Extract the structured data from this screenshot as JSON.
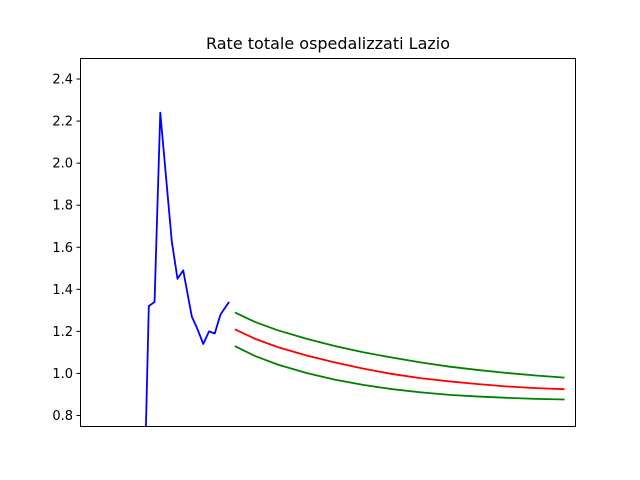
{
  "chart_data": {
    "type": "line",
    "title": "Rate totale ospedalizzati Lazio",
    "xlabel": "",
    "ylabel": "",
    "ylim": [
      0.75,
      2.5
    ],
    "xlim": [
      -14.5,
      72
    ],
    "x_ticks_shown": false,
    "y_ticks": [
      "0.8",
      "1.0",
      "1.2",
      "1.4",
      "1.6",
      "1.8",
      "2.0",
      "2.2",
      "2.4"
    ],
    "grid": false,
    "legend": "none",
    "series": [
      {
        "role": "observed",
        "color": "#0000ff",
        "x": [
          -3,
          -2.5,
          -1.5,
          -0.5,
          1.5,
          2.5,
          3.5,
          5,
          6,
          7,
          8,
          9,
          10,
          11.5
        ],
        "y": [
          0.75,
          1.32,
          1.34,
          2.24,
          1.63,
          1.45,
          1.49,
          1.27,
          1.21,
          1.14,
          1.2,
          1.19,
          1.28,
          1.34
        ]
      },
      {
        "role": "forecast-upper",
        "color": "#008000",
        "x": [
          12.5,
          16,
          20,
          25,
          30,
          35,
          40,
          45,
          50,
          55,
          60,
          65,
          70
        ],
        "y": [
          1.29,
          1.245,
          1.205,
          1.165,
          1.13,
          1.1,
          1.075,
          1.052,
          1.032,
          1.016,
          1.002,
          0.99,
          0.98
        ]
      },
      {
        "role": "forecast-central",
        "color": "#ff0000",
        "x": [
          12.5,
          16,
          20,
          25,
          30,
          35,
          40,
          45,
          50,
          55,
          60,
          65,
          70
        ],
        "y": [
          1.21,
          1.165,
          1.125,
          1.085,
          1.052,
          1.022,
          0.997,
          0.977,
          0.962,
          0.949,
          0.938,
          0.93,
          0.925
        ]
      },
      {
        "role": "forecast-lower",
        "color": "#008000",
        "x": [
          12.5,
          16,
          20,
          25,
          30,
          35,
          40,
          45,
          50,
          55,
          60,
          65,
          70
        ],
        "y": [
          1.13,
          1.083,
          1.042,
          1.002,
          0.97,
          0.945,
          0.925,
          0.91,
          0.898,
          0.89,
          0.884,
          0.879,
          0.876
        ]
      }
    ]
  }
}
